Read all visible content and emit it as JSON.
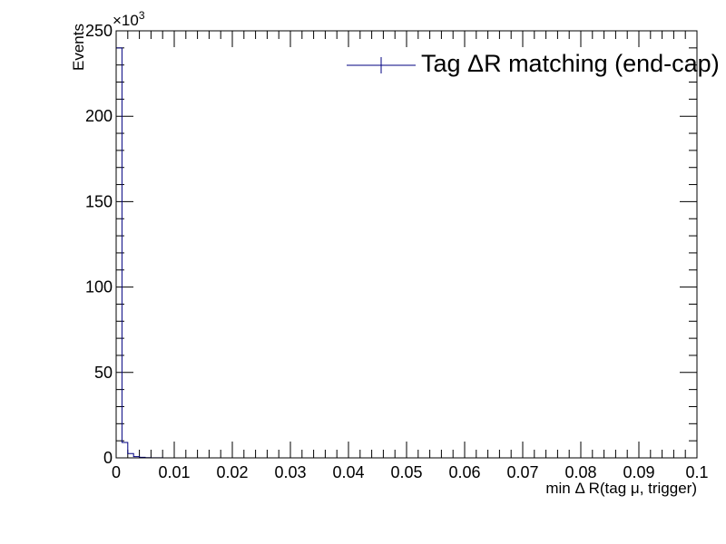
{
  "chart_data": {
    "type": "histogram",
    "xlabel": "min Δ R(tag μ, trigger)",
    "ylabel": "Events",
    "y_multiplier": "×10",
    "y_multiplier_exp": "3",
    "xlim": [
      0,
      0.1
    ],
    "ylim": [
      0,
      250000
    ],
    "x_ticks": [
      0,
      0.01,
      0.02,
      0.03,
      0.04,
      0.05,
      0.06,
      0.07,
      0.08,
      0.09,
      0.1
    ],
    "x_tick_labels": [
      "0",
      "0.01",
      "0.02",
      "0.03",
      "0.04",
      "0.05",
      "0.06",
      "0.07",
      "0.08",
      "0.09",
      "0.1"
    ],
    "y_ticks": [
      0,
      50000,
      100000,
      150000,
      200000,
      250000
    ],
    "y_tick_labels": [
      "0",
      "50",
      "100",
      "150",
      "200",
      "250"
    ],
    "grid": false,
    "legend_position": "top-right",
    "series": [
      {
        "name": "Tag ΔR matching (end-cap)",
        "color": "#000080",
        "bin_width": 0.001,
        "bin_edges_start": 0,
        "values": [
          240000,
          9000,
          2500,
          700,
          300,
          150,
          80,
          40
        ]
      }
    ]
  }
}
